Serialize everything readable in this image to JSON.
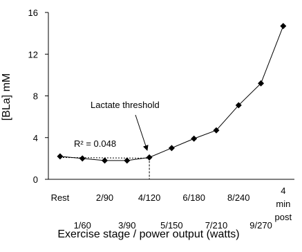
{
  "chart_data": {
    "type": "line",
    "x_label": "Exercise stage / power output (watts)",
    "y_label": "[BLa] mM",
    "categories": [
      "Rest",
      "1/60",
      "2/90",
      "3/90",
      "4/120",
      "5/150",
      "6/180",
      "7/210",
      "8/240",
      "9/270",
      "4 min post"
    ],
    "values": [
      2.2,
      2.0,
      1.8,
      1.8,
      2.1,
      3.0,
      3.9,
      4.7,
      7.1,
      9.2,
      14.7
    ],
    "color": "#000000",
    "ylim": [
      0,
      16
    ],
    "yticks": [
      0,
      4,
      8,
      12,
      16
    ],
    "annotations": [
      "Lactate threshold",
      "R² = 0.048"
    ]
  }
}
